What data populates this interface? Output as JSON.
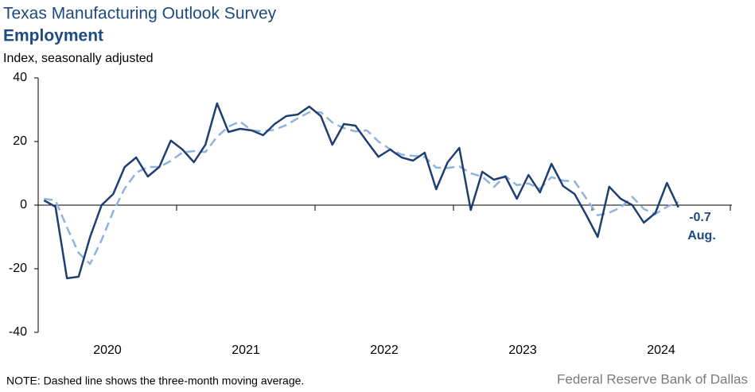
{
  "chart_data": {
    "type": "line",
    "title": "Texas Manufacturing Outlook Survey",
    "subtitle": "Employment",
    "y_label": "Index, seasonally adjusted",
    "note": "NOTE: Dashed line shows the three-month  moving average.",
    "source": "Federal Reserve Bank of Dallas",
    "annotation": "Aug.",
    "x": [
      2020.042,
      2020.125,
      2020.208,
      2020.292,
      2020.375,
      2020.458,
      2020.542,
      2020.625,
      2020.708,
      2020.792,
      2020.875,
      2020.958,
      2021.042,
      2021.125,
      2021.208,
      2021.292,
      2021.375,
      2021.458,
      2021.542,
      2021.625,
      2021.708,
      2021.792,
      2021.875,
      2021.958,
      2022.042,
      2022.125,
      2022.208,
      2022.292,
      2022.375,
      2022.458,
      2022.542,
      2022.625,
      2022.708,
      2022.792,
      2022.875,
      2022.958,
      2023.042,
      2023.125,
      2023.208,
      2023.292,
      2023.375,
      2023.458,
      2023.542,
      2023.625,
      2023.708,
      2023.792,
      2023.875,
      2023.958,
      2024.042,
      2024.125,
      2024.208,
      2024.292,
      2024.375,
      2024.458,
      2024.542,
      2024.625
    ],
    "series": [
      {
        "name": "Employment",
        "color": "#1f3f73",
        "dashed": false,
        "values": [
          1.5,
          -0.5,
          -23,
          -22.5,
          -10,
          0,
          3.5,
          12,
          15,
          9,
          12,
          20.3,
          17.5,
          13.5,
          19,
          32,
          23,
          24,
          23.5,
          22,
          25.5,
          28,
          28.5,
          31,
          28,
          19,
          25.5,
          25,
          20,
          15.2,
          17.5,
          15,
          14,
          16.5,
          5,
          13.5,
          18,
          -1.5,
          10.5,
          8,
          9,
          2,
          9.5,
          4,
          13,
          6,
          3.5,
          -3,
          -10,
          5.8,
          2,
          0,
          -5.5,
          -2.5,
          7,
          -0.7
        ]
      },
      {
        "name": "Three-month moving average",
        "color": "#8fb3df",
        "dashed": true,
        "values": [
          2,
          1.5,
          -7,
          -15,
          -18.5,
          -11,
          -2,
          5.2,
          10.2,
          12,
          12,
          13.9,
          16.6,
          17,
          16.7,
          21.5,
          24.7,
          26.3,
          23.5,
          23.2,
          23.7,
          25.2,
          27.3,
          29.2,
          29.2,
          26,
          24.2,
          23.2,
          23.5,
          20,
          17.6,
          15.9,
          15.5,
          15.2,
          11.8,
          11.7,
          12.2,
          10,
          9,
          5.7,
          9.2,
          6.3,
          6.8,
          5.2,
          8.8,
          7.7,
          7.5,
          2.2,
          -3.2,
          -2.4,
          -0.7,
          2.6,
          -1.2,
          -2.8,
          -0.5,
          1
        ]
      }
    ],
    "xlim": [
      2020,
      2025
    ],
    "xticks": [
      {
        "value": 2020.5,
        "label": "2020"
      },
      {
        "value": 2021.5,
        "label": "2021"
      },
      {
        "value": 2022.5,
        "label": "2022"
      },
      {
        "value": 2023.5,
        "label": "2023"
      },
      {
        "value": 2024.5,
        "label": "2024"
      }
    ],
    "xtick_marks": [
      2021,
      2022,
      2023,
      2024,
      2025
    ],
    "ylim": [
      -40,
      40
    ],
    "yticks": [
      40,
      20,
      0,
      -20,
      -40
    ],
    "grid": false
  }
}
